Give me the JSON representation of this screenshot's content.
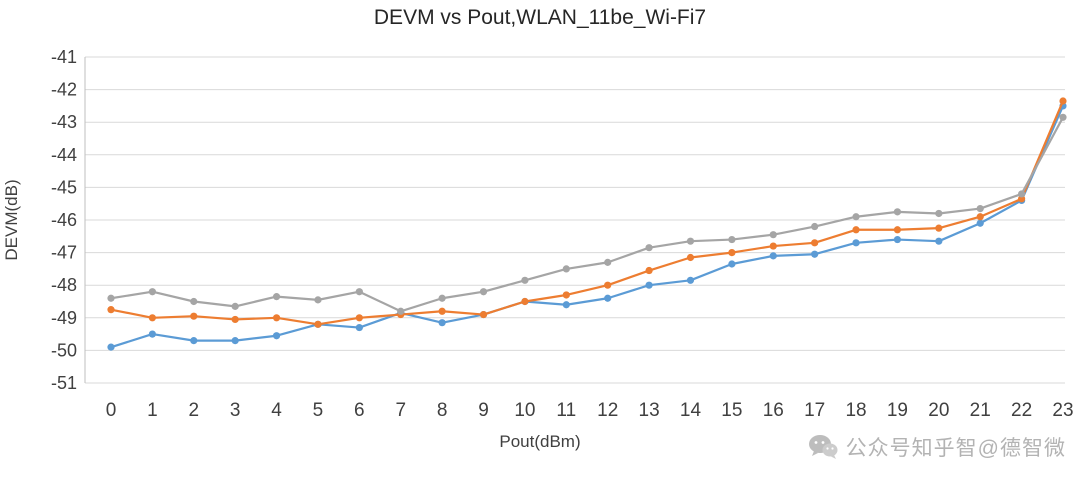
{
  "title": "DEVM vs Pout,WLAN_11be_Wi-Fi7",
  "watermark": "公众号知乎智@德智微",
  "chart_data": {
    "type": "line",
    "title": "DEVM vs Pout,WLAN_11be_Wi-Fi7",
    "xlabel": "Pout(dBm)",
    "ylabel": "DEVM(dB)",
    "x": [
      0,
      1,
      2,
      3,
      4,
      5,
      6,
      7,
      8,
      9,
      10,
      11,
      12,
      13,
      14,
      15,
      16,
      17,
      18,
      19,
      20,
      21,
      22,
      23
    ],
    "ylim": [
      -51,
      -41
    ],
    "ytick_step": 1,
    "grid": true,
    "legend_position": "none",
    "gridline_color": "#d9d9d9",
    "axis_text_color": "#404040",
    "series": [
      {
        "name": "series-blue",
        "color": "#5b9bd5",
        "values": [
          -49.9,
          -49.5,
          -49.7,
          -49.7,
          -49.55,
          -49.2,
          -49.3,
          -48.85,
          -49.15,
          -48.9,
          -48.5,
          -48.6,
          -48.4,
          -48.0,
          -47.85,
          -47.35,
          -47.1,
          -47.05,
          -46.7,
          -46.6,
          -46.65,
          -46.1,
          -45.4,
          -42.5
        ]
      },
      {
        "name": "series-orange",
        "color": "#ed7d31",
        "values": [
          -48.75,
          -49.0,
          -48.95,
          -49.05,
          -49.0,
          -49.2,
          -49.0,
          -48.9,
          -48.8,
          -48.9,
          -48.5,
          -48.3,
          -48.0,
          -47.55,
          -47.15,
          -47.0,
          -46.8,
          -46.7,
          -46.3,
          -46.3,
          -46.25,
          -45.9,
          -45.35,
          -42.35
        ]
      },
      {
        "name": "series-gray",
        "color": "#a5a5a5",
        "values": [
          -48.4,
          -48.2,
          -48.5,
          -48.65,
          -48.35,
          -48.45,
          -48.2,
          -48.8,
          -48.4,
          -48.2,
          -47.85,
          -47.5,
          -47.3,
          -46.85,
          -46.65,
          -46.6,
          -46.45,
          -46.2,
          -45.9,
          -45.75,
          -45.8,
          -45.65,
          -45.2,
          -42.85
        ]
      }
    ]
  }
}
